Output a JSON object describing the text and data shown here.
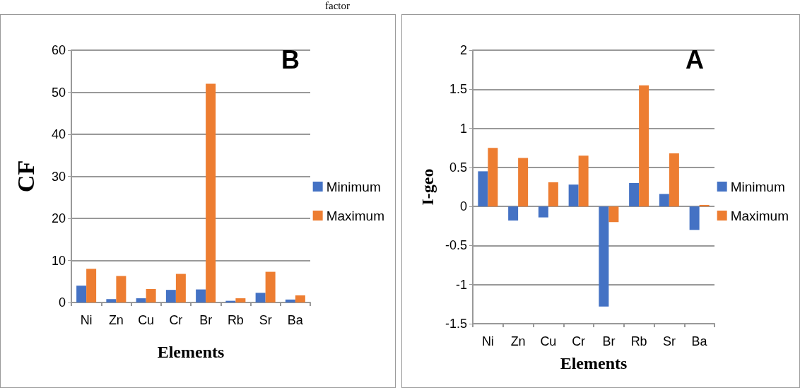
{
  "chart_data": [
    {
      "type": "bar",
      "title": "B",
      "xlabel": "Elements",
      "ylabel": "CF",
      "annotations": [
        "factor"
      ],
      "categories": [
        "Ni",
        "Zn",
        "Cu",
        "Cr",
        "Br",
        "Rb",
        "Sr",
        "Ba"
      ],
      "series": [
        {
          "name": "Minimum",
          "color": "#4472c4",
          "values": [
            4,
            0.8,
            1,
            3,
            3.1,
            0.4,
            2.3,
            0.7
          ]
        },
        {
          "name": "Maximum",
          "color": "#ed7d31",
          "values": [
            8,
            6.3,
            3.2,
            6.8,
            52,
            1,
            7.3,
            1.7
          ]
        }
      ],
      "ylim": [
        0,
        60
      ],
      "yticks": [
        0,
        10,
        20,
        30,
        40,
        50,
        60
      ],
      "grid": "y",
      "legend": "right"
    },
    {
      "type": "bar",
      "title": "A",
      "xlabel": "Elements",
      "ylabel": "I-geo",
      "categories": [
        "Ni",
        "Zn",
        "Cu",
        "Cr",
        "Br",
        "Rb",
        "Sr",
        "Ba"
      ],
      "series": [
        {
          "name": "Minimum",
          "color": "#4472c4",
          "values": [
            0.45,
            -0.18,
            -0.14,
            0.28,
            -1.28,
            0.3,
            0.16,
            -0.3
          ]
        },
        {
          "name": "Maximum",
          "color": "#ed7d31",
          "values": [
            0.75,
            0.62,
            0.31,
            0.65,
            -0.2,
            1.55,
            0.68,
            0.02
          ]
        }
      ],
      "ylim": [
        -1.5,
        2
      ],
      "yticks": [
        -1.5,
        -1,
        -0.5,
        0,
        0.5,
        1,
        1.5,
        2
      ],
      "grid": "y",
      "legend": "right"
    }
  ]
}
